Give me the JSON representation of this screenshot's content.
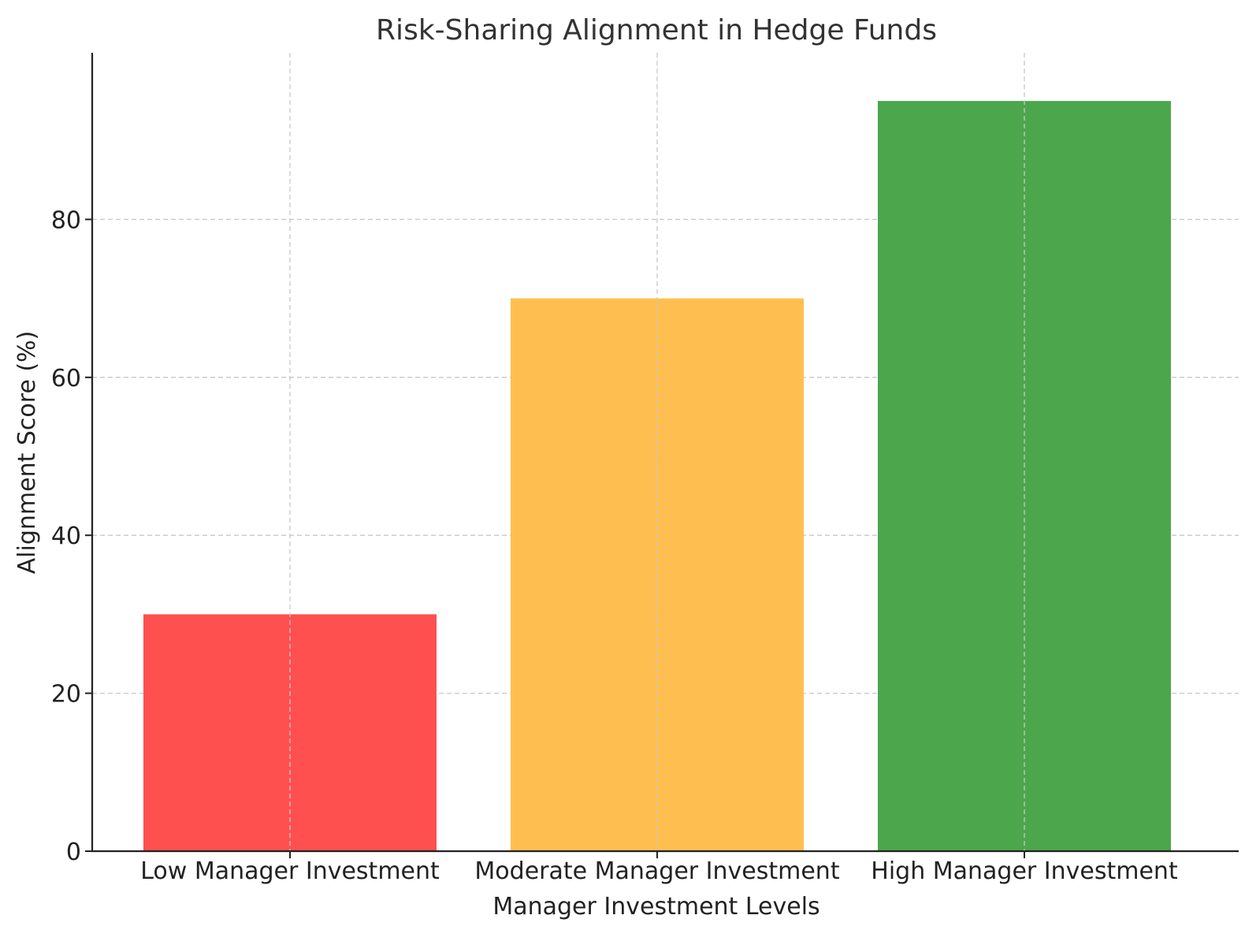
{
  "chart_data": {
    "type": "bar",
    "title": "Risk-Sharing Alignment in Hedge Funds",
    "xlabel": "Manager Investment Levels",
    "ylabel": "Alignment Score (%)",
    "categories": [
      "Low Manager Investment",
      "Moderate Manager Investment",
      "High Manager Investment"
    ],
    "values": [
      30,
      70,
      95
    ],
    "colors": [
      "#ff5050",
      "#ffbf50",
      "#4ca64c"
    ],
    "ylim": [
      0,
      100
    ],
    "yticks": [
      0,
      20,
      40,
      60,
      80
    ],
    "grid": true,
    "legend": "none"
  }
}
